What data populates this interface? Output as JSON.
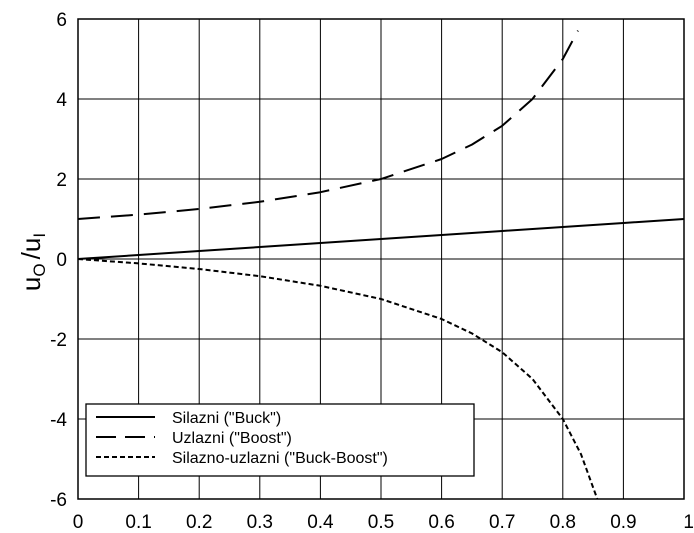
{
  "chart_data": {
    "type": "line",
    "title": "",
    "xlabel": "",
    "ylabel": {
      "u": "u",
      "sub_o": "O",
      "slash": "/",
      "sub_i": "I"
    },
    "xlim": [
      0,
      1
    ],
    "ylim": [
      -6,
      6
    ],
    "x_ticks": [
      "0",
      "0.1",
      "0.2",
      "0.3",
      "0.4",
      "0.5",
      "0.6",
      "0.7",
      "0.8",
      "0.9",
      "1"
    ],
    "y_ticks": [
      "6",
      "4",
      "2",
      "0",
      "-2",
      "-4",
      "-6"
    ],
    "grid": true,
    "legend_position": "bottom-left",
    "series": [
      {
        "name": "Silazni (\"Buck\")",
        "style": "solid",
        "x": [
          0,
          0.1,
          0.2,
          0.3,
          0.4,
          0.5,
          0.6,
          0.7,
          0.8,
          0.9,
          1
        ],
        "y": [
          0,
          0.1,
          0.2,
          0.3,
          0.4,
          0.5,
          0.6,
          0.7,
          0.8,
          0.9,
          1
        ]
      },
      {
        "name": "Uzlazni (\"Boost\")",
        "style": "dashed",
        "x": [
          0,
          0.1,
          0.2,
          0.3,
          0.4,
          0.5,
          0.6,
          0.65,
          0.7,
          0.75,
          0.8,
          0.825
        ],
        "y": [
          1,
          1.11,
          1.25,
          1.43,
          1.67,
          2,
          2.5,
          2.86,
          3.33,
          4,
          5,
          5.71
        ]
      },
      {
        "name": "Silazno-uzlazni (\"Buck-Boost\")",
        "style": "dotted",
        "x": [
          0,
          0.1,
          0.2,
          0.3,
          0.4,
          0.5,
          0.6,
          0.65,
          0.7,
          0.75,
          0.8,
          0.83,
          0.857
        ],
        "y": [
          0,
          -0.11,
          -0.25,
          -0.43,
          -0.67,
          -1,
          -1.5,
          -1.86,
          -2.33,
          -3,
          -4,
          -4.88,
          -6
        ]
      }
    ]
  }
}
